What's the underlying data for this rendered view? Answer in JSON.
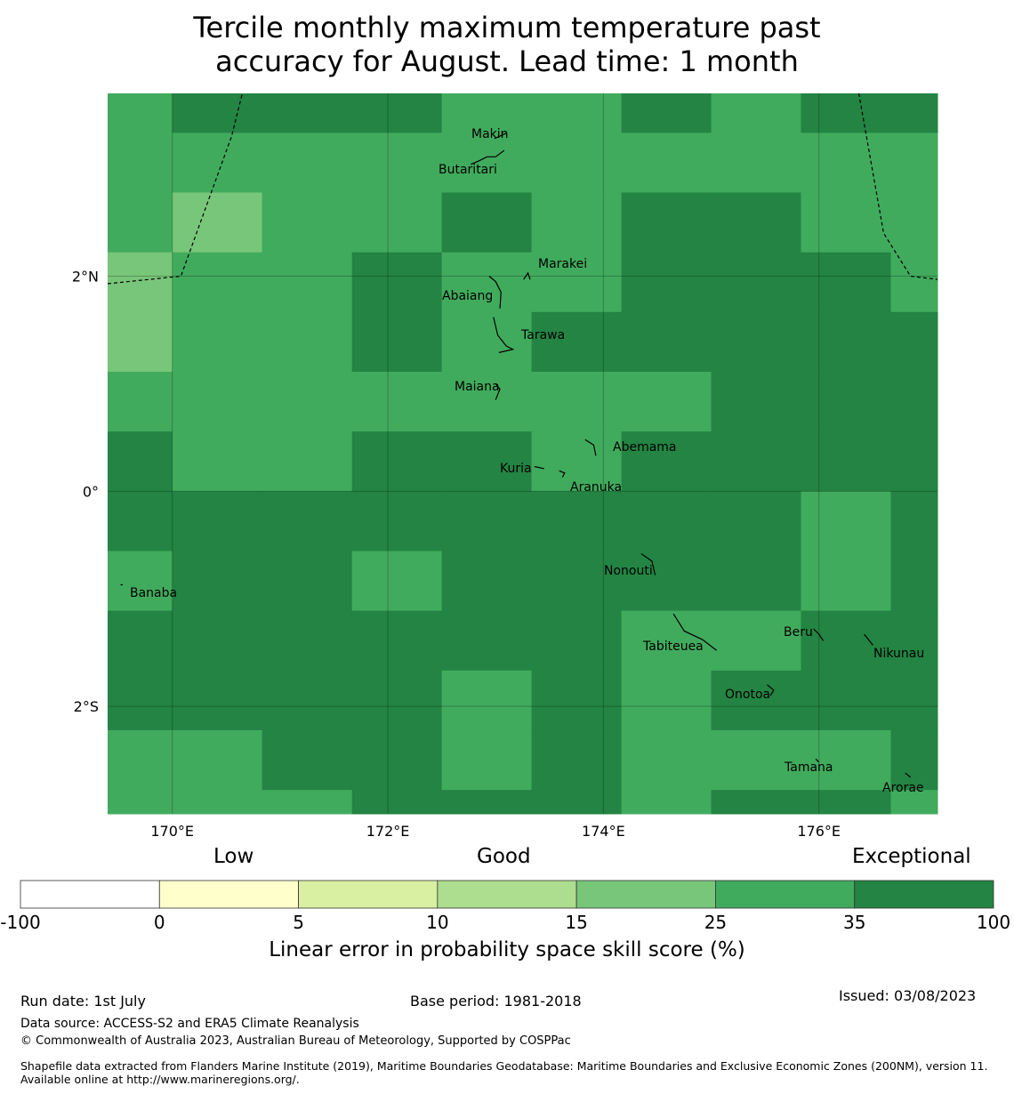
{
  "title_line1": "Tercile monthly maximum temperature past",
  "title_line2": "accuracy for August. Lead time: 1 month",
  "map": {
    "lon_range": [
      169.4,
      177.1
    ],
    "lat_range": [
      -3.0,
      3.7
    ],
    "lat_ticks": [
      {
        "label": "2°N",
        "value": 2
      },
      {
        "label": "0°",
        "value": 0
      },
      {
        "label": "2°S",
        "value": -2
      }
    ],
    "lon_ticks": [
      {
        "label": "170°E",
        "value": 170
      },
      {
        "label": "172°E",
        "value": 172
      },
      {
        "label": "174°E",
        "value": 174
      },
      {
        "label": "176°E",
        "value": 176
      }
    ],
    "class_colors": {
      "c3": "#78c679",
      "c4": "#41ab5d",
      "c5": "#238443"
    },
    "cols": [
      169.4,
      170.0,
      170.833,
      171.667,
      172.5,
      173.333,
      174.167,
      175.0,
      175.833,
      176.667,
      177.1
    ],
    "rows": [
      3.7,
      3.333,
      2.778,
      2.222,
      1.667,
      1.111,
      0.556,
      0.0,
      -0.556,
      -1.111,
      -1.667,
      -2.222,
      -2.778,
      -3.0
    ],
    "grid": [
      [
        "c4",
        "c5",
        "c5",
        "c5",
        "c4",
        "c4",
        "c5",
        "c4",
        "c5",
        "c5"
      ],
      [
        "c4",
        "c4",
        "c4",
        "c4",
        "c4",
        "c4",
        "c4",
        "c4",
        "c4",
        "c4"
      ],
      [
        "c4",
        "c3",
        "c4",
        "c4",
        "c5",
        "c4",
        "c5",
        "c5",
        "c4",
        "c4"
      ],
      [
        "c3",
        "c4",
        "c4",
        "c5",
        "c4",
        "c4",
        "c5",
        "c5",
        "c5",
        "c4"
      ],
      [
        "c3",
        "c4",
        "c4",
        "c5",
        "c4",
        "c5",
        "c5",
        "c5",
        "c5",
        "c5"
      ],
      [
        "c4",
        "c4",
        "c4",
        "c4",
        "c4",
        "c4",
        "c4",
        "c5",
        "c5",
        "c5"
      ],
      [
        "c5",
        "c4",
        "c4",
        "c5",
        "c5",
        "c4",
        "c5",
        "c5",
        "c5",
        "c5"
      ],
      [
        "c5",
        "c5",
        "c5",
        "c5",
        "c5",
        "c5",
        "c5",
        "c5",
        "c4",
        "c5"
      ],
      [
        "c4",
        "c5",
        "c5",
        "c4",
        "c5",
        "c5",
        "c5",
        "c5",
        "c4",
        "c5"
      ],
      [
        "c5",
        "c5",
        "c5",
        "c5",
        "c5",
        "c5",
        "c4",
        "c4",
        "c5",
        "c5"
      ],
      [
        "c5",
        "c5",
        "c5",
        "c5",
        "c4",
        "c5",
        "c4",
        "c5",
        "c5",
        "c5"
      ],
      [
        "c4",
        "c4",
        "c5",
        "c5",
        "c4",
        "c5",
        "c4",
        "c4",
        "c4",
        "c5"
      ],
      [
        "c4",
        "c4",
        "c4",
        "c5",
        "c5",
        "c5",
        "c4",
        "c5",
        "c5",
        "c4"
      ]
    ],
    "boundaries": [
      [
        [
          169.4,
          1.93
        ],
        [
          170.08,
          2.0
        ],
        [
          170.55,
          3.3
        ],
        [
          170.65,
          3.7
        ]
      ],
      [
        [
          176.37,
          3.7
        ],
        [
          176.6,
          2.4
        ],
        [
          176.85,
          2.0
        ],
        [
          177.1,
          1.97
        ]
      ]
    ],
    "islands": [
      {
        "name": "Makin",
        "lon": 173.0,
        "lat": 3.33,
        "shape": [
          [
            172.99,
            3.28
          ],
          [
            173.1,
            3.33
          ]
        ]
      },
      {
        "name": "Butaritari",
        "lon": 172.75,
        "lat": 3.16,
        "shape": [
          [
            172.77,
            3.04
          ],
          [
            172.84,
            3.07
          ],
          [
            172.92,
            3.11
          ],
          [
            173.0,
            3.11
          ],
          [
            173.08,
            3.17
          ]
        ]
      },
      {
        "name": "Marakei",
        "lon": 173.28,
        "lat": 2.0,
        "shape": [
          [
            173.26,
            1.97
          ],
          [
            173.3,
            2.03
          ],
          [
            173.32,
            1.97
          ]
        ]
      },
      {
        "name": "Abaiang",
        "lon": 172.97,
        "lat": 1.85,
        "shape": [
          [
            172.94,
            2.0
          ],
          [
            173.0,
            1.95
          ],
          [
            173.05,
            1.85
          ],
          [
            173.04,
            1.7
          ]
        ]
      },
      {
        "name": "Tarawa",
        "lon": 173.0,
        "lat": 1.45,
        "shape": [
          [
            172.98,
            1.62
          ],
          [
            173.02,
            1.45
          ],
          [
            173.1,
            1.35
          ],
          [
            173.16,
            1.32
          ],
          [
            173.03,
            1.29
          ]
        ]
      },
      {
        "name": "Maiana",
        "lon": 173.0,
        "lat": 0.93,
        "shape": [
          [
            173.0,
            1.0
          ],
          [
            173.04,
            0.95
          ],
          [
            173.0,
            0.85
          ]
        ]
      },
      {
        "name": "Abemama",
        "lon": 173.87,
        "lat": 0.43,
        "shape": [
          [
            173.83,
            0.48
          ],
          [
            173.91,
            0.43
          ],
          [
            173.93,
            0.33
          ]
        ]
      },
      {
        "name": "Kuria",
        "lon": 173.43,
        "lat": 0.23,
        "shape": [
          [
            173.36,
            0.23
          ],
          [
            173.45,
            0.21
          ]
        ]
      },
      {
        "name": "Aranuka",
        "lon": 173.62,
        "lat": 0.18,
        "shape": [
          [
            173.59,
            0.19
          ],
          [
            173.64,
            0.17
          ],
          [
            173.62,
            0.13
          ]
        ]
      },
      {
        "name": "Nonouti",
        "lon": 174.4,
        "lat": -0.68,
        "shape": [
          [
            174.35,
            -0.58
          ],
          [
            174.45,
            -0.65
          ],
          [
            174.48,
            -0.78
          ]
        ]
      },
      {
        "name": "Banaba",
        "lon": 169.53,
        "lat": -0.87,
        "shape": [
          [
            169.52,
            -0.87
          ],
          [
            169.54,
            -0.87
          ]
        ]
      },
      {
        "name": "Tabiteuea",
        "lon": 174.85,
        "lat": -1.42,
        "shape": [
          [
            174.65,
            -1.14
          ],
          [
            174.75,
            -1.3
          ],
          [
            174.92,
            -1.38
          ],
          [
            175.05,
            -1.48
          ]
        ]
      },
      {
        "name": "Beru",
        "lon": 176.0,
        "lat": -1.33,
        "shape": [
          [
            175.95,
            -1.28
          ],
          [
            176.0,
            -1.33
          ],
          [
            176.04,
            -1.39
          ]
        ]
      },
      {
        "name": "Nikunau",
        "lon": 176.45,
        "lat": -1.38,
        "shape": [
          [
            176.42,
            -1.33
          ],
          [
            176.5,
            -1.43
          ]
        ]
      },
      {
        "name": "Onotoa",
        "lon": 175.55,
        "lat": -1.85,
        "shape": [
          [
            175.52,
            -1.8
          ],
          [
            175.58,
            -1.85
          ],
          [
            175.55,
            -1.9
          ]
        ]
      },
      {
        "name": "Tamana",
        "lon": 175.98,
        "lat": -2.5,
        "shape": [
          [
            175.97,
            -2.49
          ],
          [
            176.0,
            -2.52
          ]
        ]
      },
      {
        "name": "Arorae",
        "lon": 176.82,
        "lat": -2.64,
        "shape": [
          [
            176.8,
            -2.62
          ],
          [
            176.85,
            -2.66
          ]
        ]
      }
    ]
  },
  "colorbar": {
    "category_labels": [
      "Low",
      "Good",
      "Exceptional"
    ],
    "ticks": [
      "-100",
      "0",
      "5",
      "10",
      "15",
      "25",
      "35",
      "100"
    ],
    "colors": [
      "#ffffff",
      "#ffffcc",
      "#d9f0a3",
      "#addd8e",
      "#78c679",
      "#41ab5d",
      "#238443"
    ],
    "label": "Linear error in probability space skill score (%)"
  },
  "footer": {
    "run_date": "Run date: 1st July",
    "base_period": "Base period: 1981-2018",
    "issued": "Issued: 03/08/2023",
    "data_source": "Data source: ACCESS-S2 and ERA5 Climate Reanalysis",
    "copyright": "© Commonwealth of Australia 2023, Australian Bureau of Meteorology, Supported by COSPPac",
    "shapefile": "Shapefile data extracted from Flanders Marine Institute (2019), Maritime Boundaries Geodatabase: Maritime Boundaries and Exclusive Economic Zones (200NM), version 11. Available online at http://www.marineregions.org/."
  }
}
